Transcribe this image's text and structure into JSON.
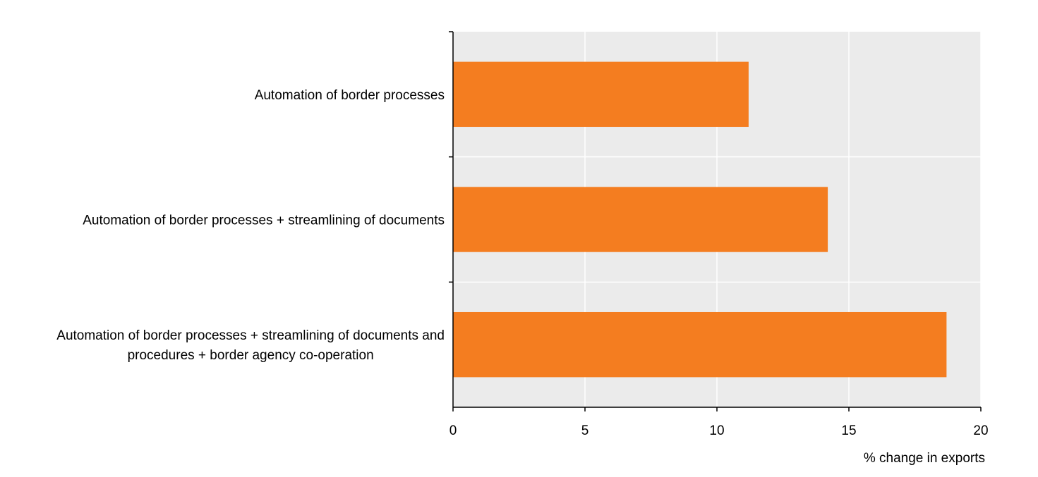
{
  "chart_data": {
    "type": "bar",
    "orientation": "horizontal",
    "categories": [
      [
        "Automation of border processes"
      ],
      [
        "Automation of border processes + streamlining of documents"
      ],
      [
        "Automation of border processes + streamlining of documents and",
        "procedures + border agency co-operation"
      ]
    ],
    "values": [
      11.2,
      14.2,
      18.7
    ],
    "xlabel": "% change in exports",
    "ylabel": "",
    "xlim": [
      0,
      20
    ],
    "xticks": [
      0,
      5,
      10,
      15,
      20
    ],
    "grid": true,
    "colors": {
      "bar": "#F47D20",
      "plot_background": "#EBEBEB",
      "gridline": "#FFFFFF",
      "axis": "#000000"
    }
  }
}
